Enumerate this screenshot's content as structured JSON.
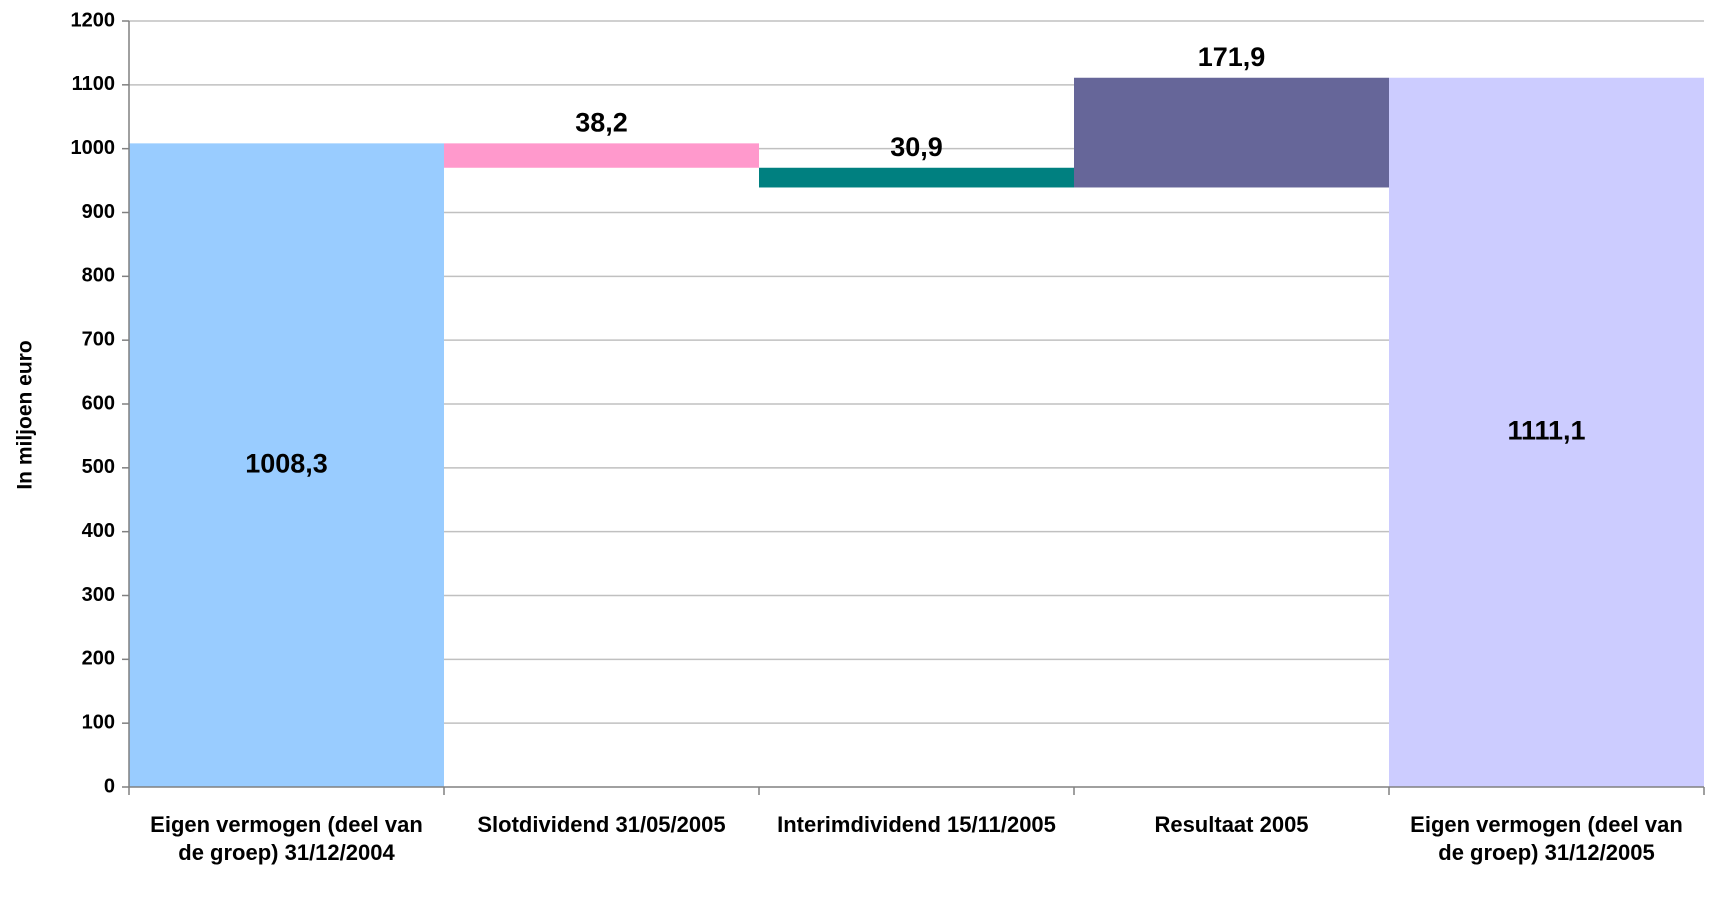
{
  "chart_data": {
    "type": "waterfall",
    "y_label": "In miljoen euro",
    "categories": [
      "Eigen vermogen (deel van de groep) 31/12/2004",
      "Slotdividend 31/05/2005",
      "Interimdividend 15/11/2005",
      "Resultaat 2005",
      "Eigen vermogen (deel van de groep) 31/12/2005"
    ],
    "measure": [
      "absolute",
      "relative",
      "relative",
      "relative",
      "total"
    ],
    "values": [
      1008.3,
      -38.2,
      -30.9,
      171.9,
      1111.1
    ],
    "value_labels": [
      "1008,3",
      "38,2",
      "30,9",
      "171,9",
      "1111,1"
    ],
    "colors": [
      "#99ccff",
      "#ff99cc",
      "#008080",
      "#666699",
      "#ccccff"
    ],
    "ylim": [
      0,
      1200
    ],
    "yticks": [
      0,
      100,
      200,
      300,
      400,
      500,
      600,
      700,
      800,
      900,
      1000,
      1100,
      1200
    ],
    "grid": true
  }
}
